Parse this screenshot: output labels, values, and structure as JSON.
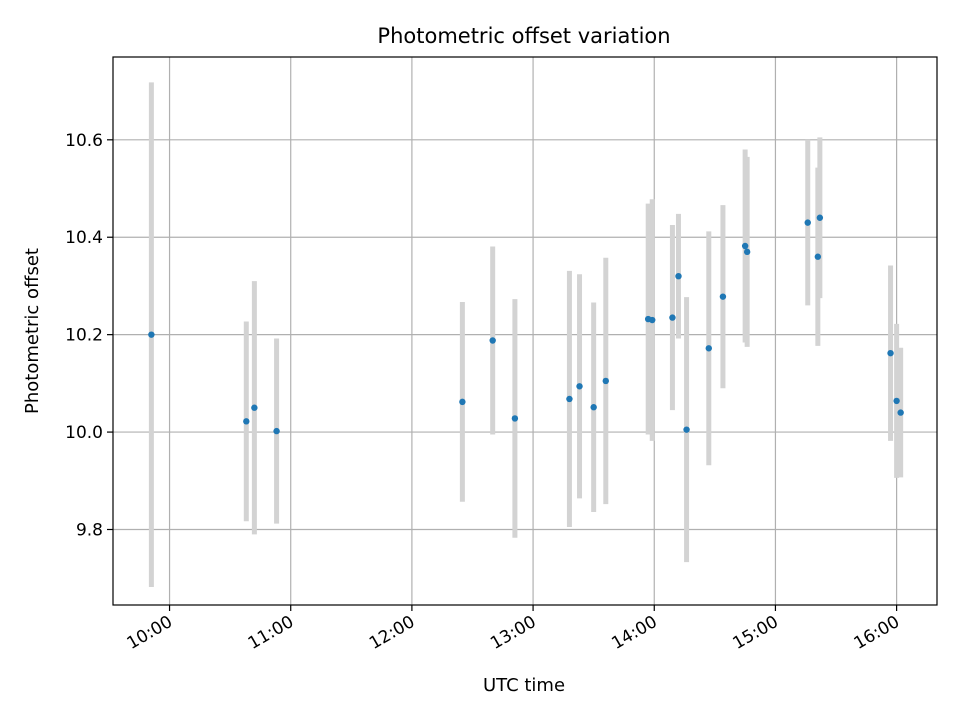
{
  "chart_data": {
    "type": "scatter",
    "title": "Photometric offset variation",
    "xlabel": "UTC time",
    "ylabel": "Photometric offset",
    "x_ticks": [
      "10:00",
      "11:00",
      "12:00",
      "13:00",
      "14:00",
      "15:00",
      "16:00"
    ],
    "y_ticks": [
      "9.8",
      "10.0",
      "10.2",
      "10.4",
      "10.6"
    ],
    "xlim": [
      "09:32",
      "16:20"
    ],
    "ylim": [
      9.645,
      10.77
    ],
    "grid": true,
    "colors": {
      "point": "#1f77b4",
      "errorbar": "#d3d3d3",
      "grid": "#b0b0b0"
    },
    "points": [
      {
        "x": "09:51",
        "y": 10.2,
        "yerr": 0.518
      },
      {
        "x": "10:38",
        "y": 10.022,
        "yerr": 0.205
      },
      {
        "x": "10:42",
        "y": 10.05,
        "yerr": 0.26
      },
      {
        "x": "10:53",
        "y": 10.002,
        "yerr": 0.19
      },
      {
        "x": "12:25",
        "y": 10.062,
        "yerr": 0.205
      },
      {
        "x": "12:40",
        "y": 10.188,
        "yerr": 0.193
      },
      {
        "x": "12:51",
        "y": 10.028,
        "yerr": 0.245
      },
      {
        "x": "13:18",
        "y": 10.068,
        "yerr": 0.263
      },
      {
        "x": "13:23",
        "y": 10.094,
        "yerr": 0.23
      },
      {
        "x": "13:30",
        "y": 10.051,
        "yerr": 0.215
      },
      {
        "x": "13:36",
        "y": 10.105,
        "yerr": 0.253
      },
      {
        "x": "13:57",
        "y": 10.232,
        "yerr": 0.237
      },
      {
        "x": "13:59",
        "y": 10.23,
        "yerr": 0.248
      },
      {
        "x": "14:09",
        "y": 10.235,
        "yerr": 0.19
      },
      {
        "x": "14:12",
        "y": 10.32,
        "yerr": 0.128
      },
      {
        "x": "14:16",
        "y": 10.005,
        "yerr": 0.272
      },
      {
        "x": "14:27",
        "y": 10.172,
        "yerr": 0.24
      },
      {
        "x": "14:34",
        "y": 10.278,
        "yerr": 0.188
      },
      {
        "x": "14:45",
        "y": 10.382,
        "yerr": 0.198
      },
      {
        "x": "14:46",
        "y": 10.37,
        "yerr": 0.195
      },
      {
        "x": "15:16",
        "y": 10.43,
        "yerr": 0.17
      },
      {
        "x": "15:21",
        "y": 10.36,
        "yerr": 0.183
      },
      {
        "x": "15:22",
        "y": 10.44,
        "yerr": 0.165
      },
      {
        "x": "15:57",
        "y": 10.162,
        "yerr": 0.18
      },
      {
        "x": "16:00",
        "y": 10.064,
        "yerr": 0.158
      },
      {
        "x": "16:02",
        "y": 10.04,
        "yerr": 0.133
      }
    ]
  }
}
